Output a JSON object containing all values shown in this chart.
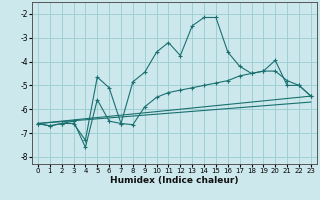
{
  "xlabel": "Humidex (Indice chaleur)",
  "bg_color": "#cce8ec",
  "grid_color": "#99ccd0",
  "line_color": "#1a7070",
  "xlim": [
    -0.5,
    23.5
  ],
  "ylim": [
    -8.3,
    -1.5
  ],
  "yticks": [
    -8,
    -7,
    -6,
    -5,
    -4,
    -3,
    -2
  ],
  "xticks": [
    0,
    1,
    2,
    3,
    4,
    5,
    6,
    7,
    8,
    9,
    10,
    11,
    12,
    13,
    14,
    15,
    16,
    17,
    18,
    19,
    20,
    21,
    22,
    23
  ],
  "line1_x": [
    0,
    1,
    2,
    3,
    4,
    5,
    6,
    7,
    8,
    9,
    10,
    11,
    12,
    13,
    14,
    15,
    16,
    17,
    18,
    19,
    20,
    21,
    22,
    23
  ],
  "line1_y": [
    -6.6,
    -6.7,
    -6.6,
    -6.6,
    -7.3,
    -4.65,
    -5.1,
    -6.6,
    -4.85,
    -4.45,
    -3.6,
    -3.2,
    -3.75,
    -2.5,
    -2.15,
    -2.15,
    -3.6,
    -4.2,
    -4.5,
    -4.4,
    -3.95,
    -5.0,
    -5.0,
    -5.45
  ],
  "line2_x": [
    0,
    1,
    2,
    3,
    4,
    5,
    6,
    7,
    8,
    9,
    10,
    11,
    12,
    13,
    14,
    15,
    16,
    17,
    18,
    19,
    20,
    21,
    22,
    23
  ],
  "line2_y": [
    -6.6,
    -6.7,
    -6.6,
    -6.5,
    -7.6,
    -5.6,
    -6.5,
    -6.6,
    -6.65,
    -5.9,
    -5.5,
    -5.3,
    -5.2,
    -5.1,
    -5.0,
    -4.9,
    -4.8,
    -4.6,
    -4.5,
    -4.4,
    -4.4,
    -4.8,
    -5.0,
    -5.45
  ],
  "line3_x": [
    0,
    23
  ],
  "line3_y": [
    -6.6,
    -5.45
  ],
  "line4_x": [
    0,
    23
  ],
  "line4_y": [
    -6.6,
    -5.7
  ]
}
